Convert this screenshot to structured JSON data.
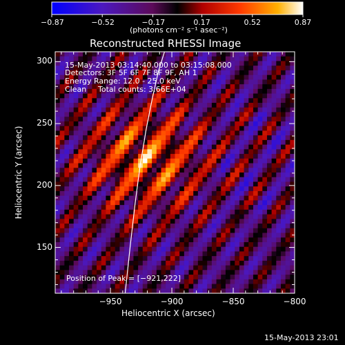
{
  "chart_data": {
    "type": "heatmap",
    "title": "Reconstructed RHESSI Image",
    "xlabel": "Heliocentric X (arcsec)",
    "ylabel": "Heliocentric Y (arcsec)",
    "xlim": [
      -995,
      -800
    ],
    "ylim": [
      113,
      308
    ],
    "x_ticks": [
      -950,
      -900,
      -850,
      -800
    ],
    "x_tick_labels": [
      "−950",
      "−900",
      "−850",
      "−800"
    ],
    "y_ticks": [
      150,
      200,
      250,
      300
    ],
    "y_tick_labels": [
      "150",
      "200",
      "250",
      "300"
    ],
    "colorbar": {
      "min": -0.87,
      "max": 0.87,
      "ticks": [
        -0.87,
        -0.52,
        -0.17,
        0.17,
        0.52,
        0.87
      ],
      "tick_labels": [
        "−0.87",
        "−0.52",
        "−0.17",
        "0.17",
        "0.52",
        "0.87"
      ],
      "units_label": "(photons cm⁻² s⁻¹ asec⁻²)"
    },
    "peak": {
      "x": -921,
      "y": 222
    },
    "annotations": {
      "time_range": "15-May-2013 03:14:40.000 to 03:15:08.000",
      "detectors": "Detectors: 3F 5F 6F 7F 8F 9F, AH 1",
      "energy": "Energy Range: 12.0 - 25.0 keV",
      "algorithm": "Clean",
      "counts": "Total counts: 3.66E+04",
      "peak_text": "Position of Peak = [−921,222]"
    },
    "limb_curve_x": [
      -938,
      -934,
      -930,
      -926,
      -921,
      -916,
      -911,
      -906
    ],
    "limb_curve_y": [
      113,
      150,
      185,
      215,
      245,
      270,
      292,
      308
    ],
    "grid": false
  },
  "footer": {
    "timestamp": "15-May-2013 23:01"
  }
}
